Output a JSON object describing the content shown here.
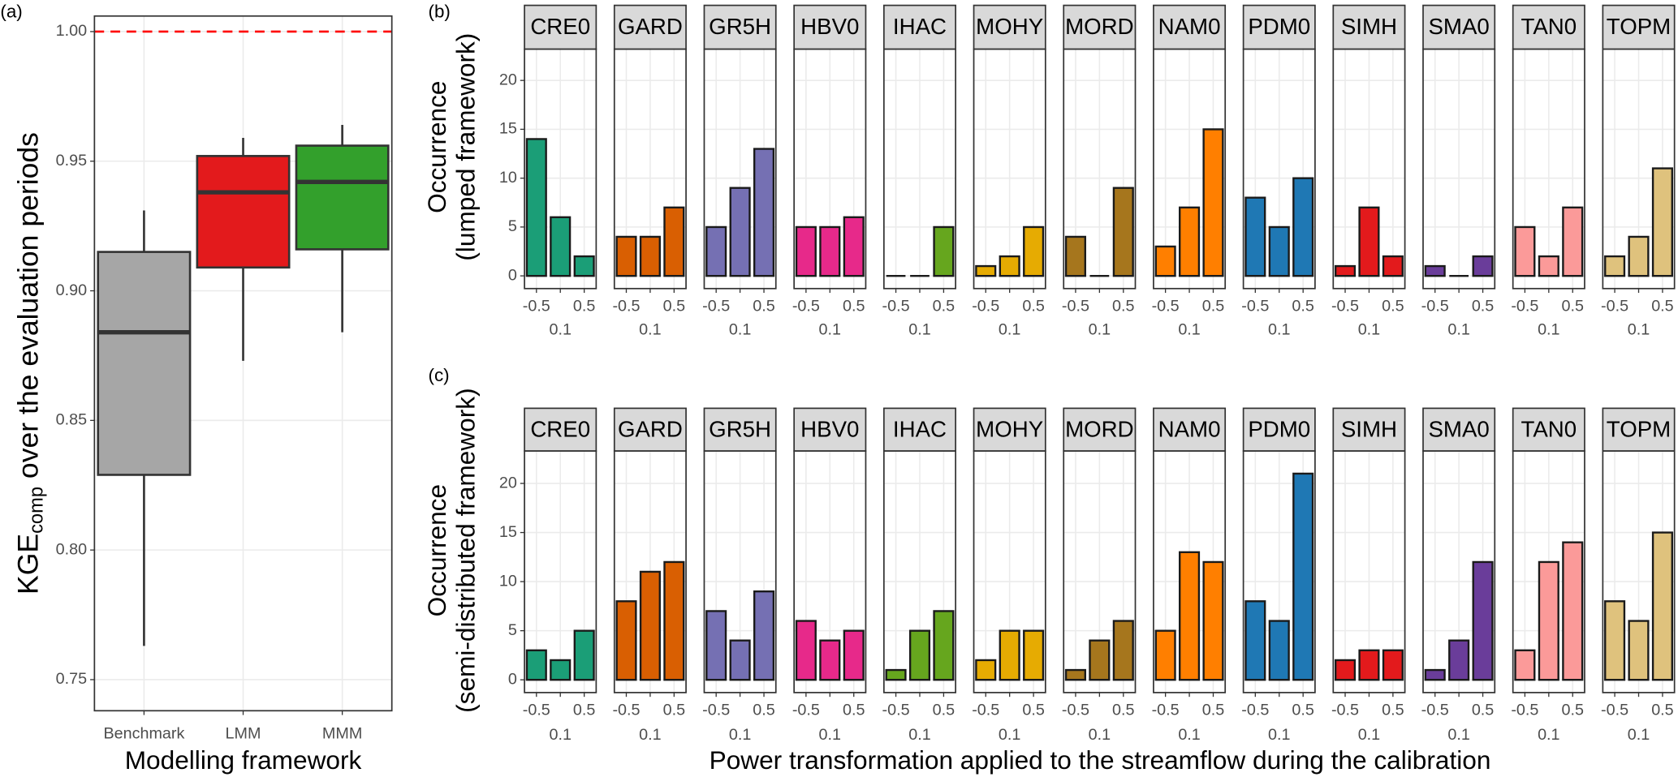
{
  "chart_data": [
    {
      "type": "box",
      "panel_label": "(a)",
      "ylabel": {
        "main": "KGE",
        "sub": "comp",
        "rest": " over the evaluation periods"
      },
      "xlabel": "Modelling framework",
      "categories": [
        "Benchmark",
        "LMM",
        "MMM"
      ],
      "colors": [
        "#a6a6a6",
        "#e31a1c",
        "#33a02c"
      ],
      "boxes": [
        {
          "low": 0.763,
          "q1": 0.829,
          "median": 0.884,
          "q3": 0.915,
          "high": 0.931
        },
        {
          "low": 0.873,
          "q1": 0.909,
          "median": 0.938,
          "q3": 0.952,
          "high": 0.959
        },
        {
          "low": 0.884,
          "q1": 0.916,
          "median": 0.942,
          "q3": 0.956,
          "high": 0.964
        }
      ],
      "reference_line": 1.0,
      "reference_color": "#ff0000",
      "ylim": [
        0.738,
        1.006
      ],
      "yticks": [
        0.75,
        {
          "value": 0.8,
          "label": "0.80"
        },
        0.85,
        {
          "value": 0.9,
          "label": "0.90"
        },
        0.95,
        {
          "value": 1.0,
          "label": "1.00"
        }
      ],
      "grid": true
    },
    {
      "type": "facet-bar",
      "panel_label": "(b)",
      "ylabel": [
        "Occurrence",
        "(lumped framework)"
      ],
      "categories": [
        "-0.5",
        "0.1",
        "0.5"
      ],
      "ylim": [
        -1.3,
        23.2
      ],
      "yticks": [
        0,
        5,
        10,
        15,
        20
      ],
      "grid": true,
      "series": [
        {
          "name": "CRE0",
          "color": "#1b9e77",
          "values": [
            14,
            6,
            2
          ]
        },
        {
          "name": "GARD",
          "color": "#d95f02",
          "values": [
            4,
            4,
            7
          ]
        },
        {
          "name": "GR5H",
          "color": "#7570b3",
          "values": [
            5,
            9,
            13
          ]
        },
        {
          "name": "HBV0",
          "color": "#e7298a",
          "values": [
            5,
            5,
            6
          ]
        },
        {
          "name": "IHAC",
          "color": "#66a61e",
          "values": [
            0,
            0,
            5
          ]
        },
        {
          "name": "MOHY",
          "color": "#e6ab02",
          "values": [
            1,
            2,
            5
          ]
        },
        {
          "name": "MORD",
          "color": "#a6761d",
          "values": [
            4,
            0,
            9
          ]
        },
        {
          "name": "NAM0",
          "color": "#ff7f00",
          "values": [
            3,
            7,
            15
          ]
        },
        {
          "name": "PDM0",
          "color": "#1f78b4",
          "values": [
            8,
            5,
            10
          ]
        },
        {
          "name": "SIMH",
          "color": "#e31a1c",
          "values": [
            1,
            7,
            2
          ]
        },
        {
          "name": "SMA0",
          "color": "#6a3d9a",
          "values": [
            1,
            0,
            2
          ]
        },
        {
          "name": "TAN0",
          "color": "#fb9a99",
          "values": [
            5,
            2,
            7
          ]
        },
        {
          "name": "TOPM",
          "color": "#dfc27d",
          "values": [
            2,
            4,
            11
          ]
        }
      ]
    },
    {
      "type": "facet-bar",
      "panel_label": "(c)",
      "ylabel": [
        "Occurrence",
        "(semi-distributed framework)"
      ],
      "xlabel": "Power transformation applied to the streamflow during the calibration",
      "categories": [
        "-0.5",
        "0.1",
        "0.5"
      ],
      "ylim": [
        -1.3,
        23.3
      ],
      "yticks": [
        0,
        5,
        10,
        15,
        20
      ],
      "grid": true,
      "series": [
        {
          "name": "CRE0",
          "color": "#1b9e77",
          "values": [
            3,
            2,
            5
          ]
        },
        {
          "name": "GARD",
          "color": "#d95f02",
          "values": [
            8,
            11,
            12
          ]
        },
        {
          "name": "GR5H",
          "color": "#7570b3",
          "values": [
            7,
            4,
            9
          ]
        },
        {
          "name": "HBV0",
          "color": "#e7298a",
          "values": [
            6,
            4,
            5
          ]
        },
        {
          "name": "IHAC",
          "color": "#66a61e",
          "values": [
            1,
            5,
            7
          ]
        },
        {
          "name": "MOHY",
          "color": "#e6ab02",
          "values": [
            2,
            5,
            5
          ]
        },
        {
          "name": "MORD",
          "color": "#a6761d",
          "values": [
            1,
            4,
            6
          ]
        },
        {
          "name": "NAM0",
          "color": "#ff7f00",
          "values": [
            5,
            13,
            12
          ]
        },
        {
          "name": "PDM0",
          "color": "#1f78b4",
          "values": [
            8,
            6,
            21
          ]
        },
        {
          "name": "SIMH",
          "color": "#e31a1c",
          "values": [
            2,
            3,
            3
          ]
        },
        {
          "name": "SMA0",
          "color": "#6a3d9a",
          "values": [
            1,
            4,
            12
          ]
        },
        {
          "name": "TAN0",
          "color": "#fb9a99",
          "values": [
            3,
            12,
            14
          ]
        },
        {
          "name": "TOPM",
          "color": "#dfc27d",
          "values": [
            8,
            6,
            15
          ]
        }
      ]
    }
  ]
}
